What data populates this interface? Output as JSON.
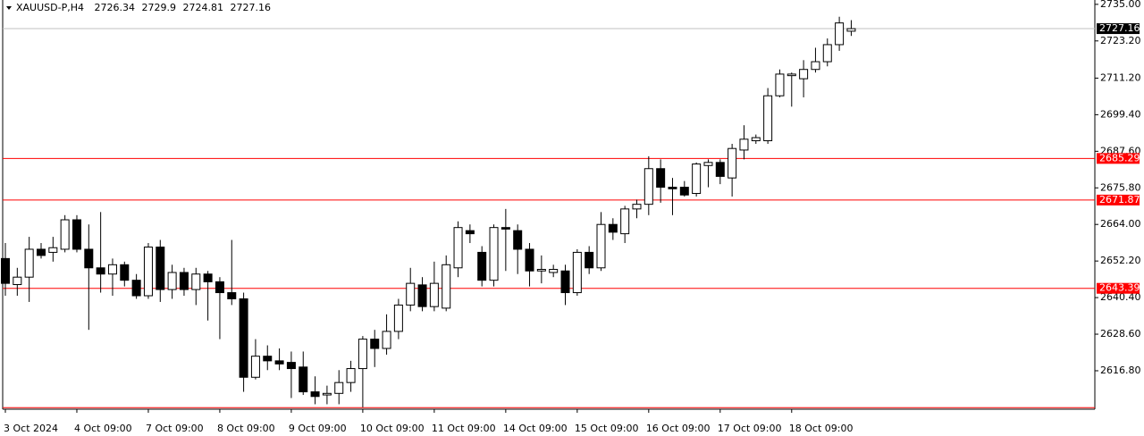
{
  "chart_data": {
    "type": "candlestick",
    "title": "XAUUSD-P,H4",
    "categories": [
      "3 Oct 2024",
      null,
      null,
      null,
      null,
      null,
      "4 Oct 09:00",
      null,
      null,
      null,
      null,
      null,
      "7 Oct 09:00",
      null,
      null,
      null,
      null,
      null,
      "8 Oct 09:00",
      null,
      null,
      null,
      null,
      null,
      "9 Oct 09:00",
      null,
      null,
      null,
      null,
      null,
      "10 Oct 09:00",
      null,
      null,
      null,
      null,
      null,
      "11 Oct 09:00",
      null,
      null,
      null,
      null,
      null,
      "14 Oct 09:00",
      null,
      null,
      null,
      null,
      null,
      "15 Oct 09:00",
      null,
      null,
      null,
      null,
      null,
      "16 Oct 09:00",
      null,
      null,
      null,
      null,
      null,
      "17 Oct 09:00",
      null,
      null,
      null,
      null,
      null,
      "18 Oct 09:00",
      null,
      null,
      null,
      null,
      null
    ],
    "open": [
      2653,
      2644.6,
      2647,
      2656,
      2655,
      2656,
      2665.5,
      2656,
      2650,
      2648,
      2651,
      2646,
      2641,
      2656.7,
      2643,
      2648.5,
      2643,
      2648,
      2645.5,
      2642,
      2640,
      2614.7,
      2621.5,
      2620,
      2619.5,
      2618,
      2610,
      2609,
      2609.5,
      2613,
      2617.5,
      2627,
      2624,
      2629.5,
      2638,
      2644.5,
      2637.5,
      2637,
      2650,
      2662,
      2655,
      2646,
      2663,
      2662,
      2656,
      2649,
      2648.5,
      2649,
      2642,
      2655,
      2650,
      2664,
      2661,
      2669,
      2670.5,
      2682,
      2676,
      2676,
      2674,
      2683,
      2684,
      2679,
      2688,
      2691,
      2691,
      2705.5,
      2712,
      2711,
      2714,
      2716.5,
      2722,
      2726.34
    ],
    "high": [
      2658,
      2650,
      2660,
      2658,
      2660,
      2667,
      2667,
      2664,
      2668,
      2653,
      2652,
      2648,
      2658,
      2659,
      2651,
      2650,
      2650,
      2649,
      2647,
      2659,
      2642,
      2627,
      2625,
      2624,
      2623,
      2623,
      2615,
      2612,
      2617,
      2620,
      2628,
      2630,
      2635,
      2640,
      2650,
      2647,
      2652,
      2654,
      2665,
      2664,
      2657,
      2664,
      2669,
      2664,
      2658,
      2654,
      2651,
      2651,
      2656,
      2657,
      2668,
      2666,
      2670,
      2672,
      2686,
      2685,
      2679,
      2678,
      2684,
      2685,
      2685,
      2690,
      2696,
      2693,
      2708,
      2714,
      2713,
      2717,
      2721,
      2724,
      2731,
      2729.9
    ],
    "low": [
      2641,
      2641,
      2639,
      2653,
      2652,
      2655,
      2655,
      2630,
      2642,
      2641,
      2644,
      2640,
      2640,
      2639,
      2640,
      2641,
      2638,
      2633,
      2627,
      2638,
      2610,
      2614,
      2617,
      2617,
      2608,
      2609,
      2606,
      2606,
      2606,
      2610,
      2605,
      2618,
      2622,
      2627,
      2636,
      2636,
      2636,
      2636,
      2647,
      2658,
      2644,
      2644,
      2649,
      2648,
      2644,
      2645,
      2647,
      2638,
      2641,
      2648,
      2649,
      2659,
      2658,
      2666,
      2667,
      2671,
      2667,
      2673,
      2673,
      2676,
      2677,
      2673,
      2685,
      2690,
      2690,
      2705,
      2702,
      2705,
      2713,
      2715,
      2720,
      2724.81
    ],
    "close": [
      2645,
      2647,
      2656,
      2654,
      2656.5,
      2665.5,
      2656,
      2650,
      2648,
      2651,
      2646,
      2641,
      2656.7,
      2643,
      2648.5,
      2643,
      2648,
      2645.5,
      2642,
      2640,
      2614.7,
      2621.5,
      2620,
      2619,
      2617.5,
      2610,
      2608.5,
      2609.5,
      2613,
      2617.5,
      2627,
      2624,
      2629.5,
      2638,
      2645,
      2637.5,
      2645,
      2651,
      2663,
      2661,
      2646,
      2663,
      2662.5,
      2656,
      2649,
      2649.5,
      2649.5,
      2642,
      2655,
      2650,
      2664,
      2661.5,
      2669,
      2670.5,
      2682,
      2676,
      2675.5,
      2673.5,
      2683.5,
      2684,
      2679.5,
      2688.5,
      2691.5,
      2692,
      2705.5,
      2712.5,
      2712.5,
      2714,
      2716.5,
      2722,
      2729,
      2727.16
    ],
    "ylim": [
      2604.4,
      2736.4
    ],
    "yticks": [
      {
        "value": 2735,
        "label": "2735.00"
      },
      {
        "value": 2723.2,
        "label": "2723.20"
      },
      {
        "value": 2711.2,
        "label": "2711.20"
      },
      {
        "value": 2699.4,
        "label": "2699.40"
      },
      {
        "value": 2687.6,
        "label": "2687.60"
      },
      {
        "value": 2675.8,
        "label": "2675.80"
      },
      {
        "value": 2664,
        "label": "2664.00"
      },
      {
        "value": 2652.2,
        "label": "2652.20"
      },
      {
        "value": 2640.4,
        "label": "2640.40"
      },
      {
        "value": 2628.6,
        "label": "2628.60"
      },
      {
        "value": 2616.8,
        "label": "2616.80"
      }
    ],
    "levels": [
      2685.29,
      2671.87,
      2643.39,
      2604.9
    ],
    "level_color": "#ff0000",
    "current_price": 2727.16
  }
}
